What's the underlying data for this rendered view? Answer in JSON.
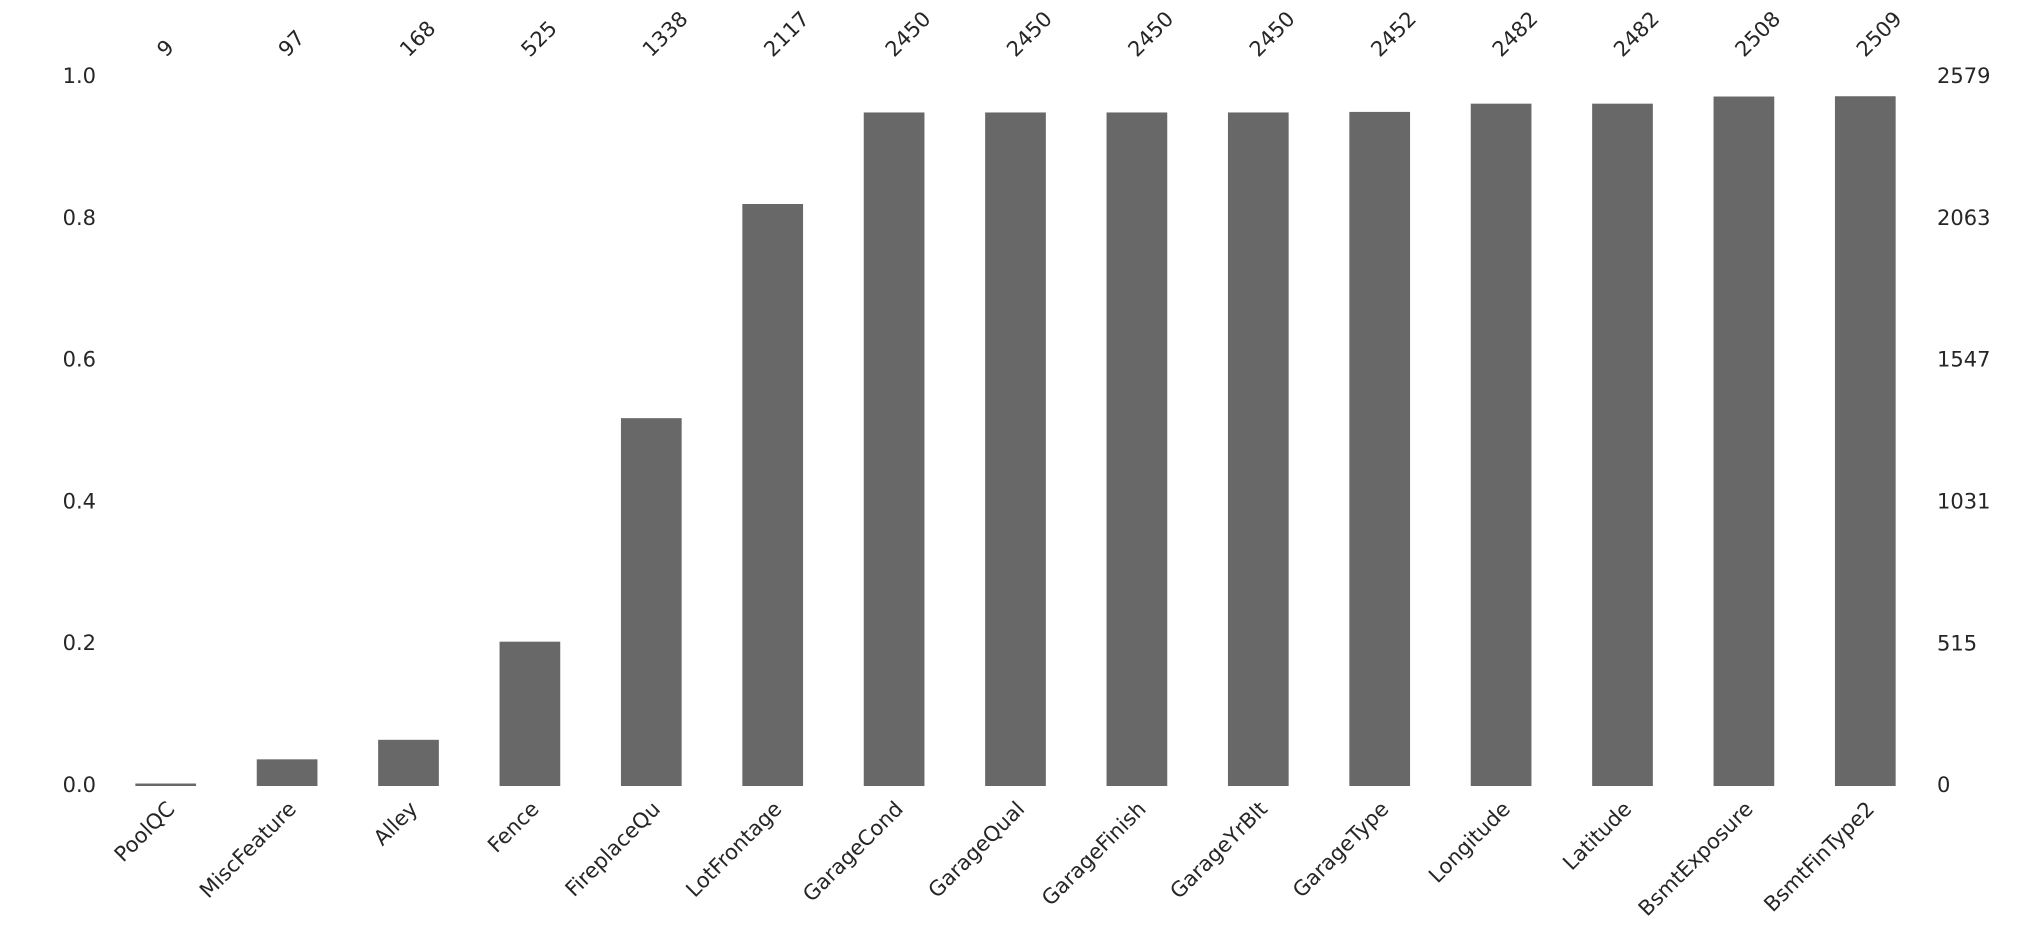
{
  "chart_data": {
    "type": "bar",
    "categories": [
      "PoolQC",
      "MiscFeature",
      "Alley",
      "Fence",
      "FireplaceQu",
      "LotFrontage",
      "GarageCond",
      "GarageQual",
      "GarageFinish",
      "GarageYrBlt",
      "GarageType",
      "Longitude",
      "Latitude",
      "BsmtExposure",
      "BsmtFinType2"
    ],
    "series": [
      {
        "color": "#686868",
        "axis": "y2",
        "values": [
          9,
          97,
          168,
          525,
          1338,
          2117,
          2450,
          2450,
          2450,
          2450,
          2452,
          2482,
          2482,
          2508,
          2509
        ]
      }
    ],
    "ylim": [
      0,
      1
    ],
    "yticks": [
      {
        "value": 0,
        "label": "0.0"
      },
      {
        "value": 0.2,
        "label": "0.2"
      },
      {
        "value": 0.4,
        "label": "0.4"
      },
      {
        "value": 0.6,
        "label": "0.6"
      },
      {
        "value": 0.8,
        "label": "0.8"
      },
      {
        "value": 1,
        "label": "1.0"
      }
    ],
    "y2lim": [
      0,
      2579
    ],
    "y2ticks": [
      0,
      515,
      1031,
      1547,
      2063,
      2579
    ],
    "grid": false
  }
}
